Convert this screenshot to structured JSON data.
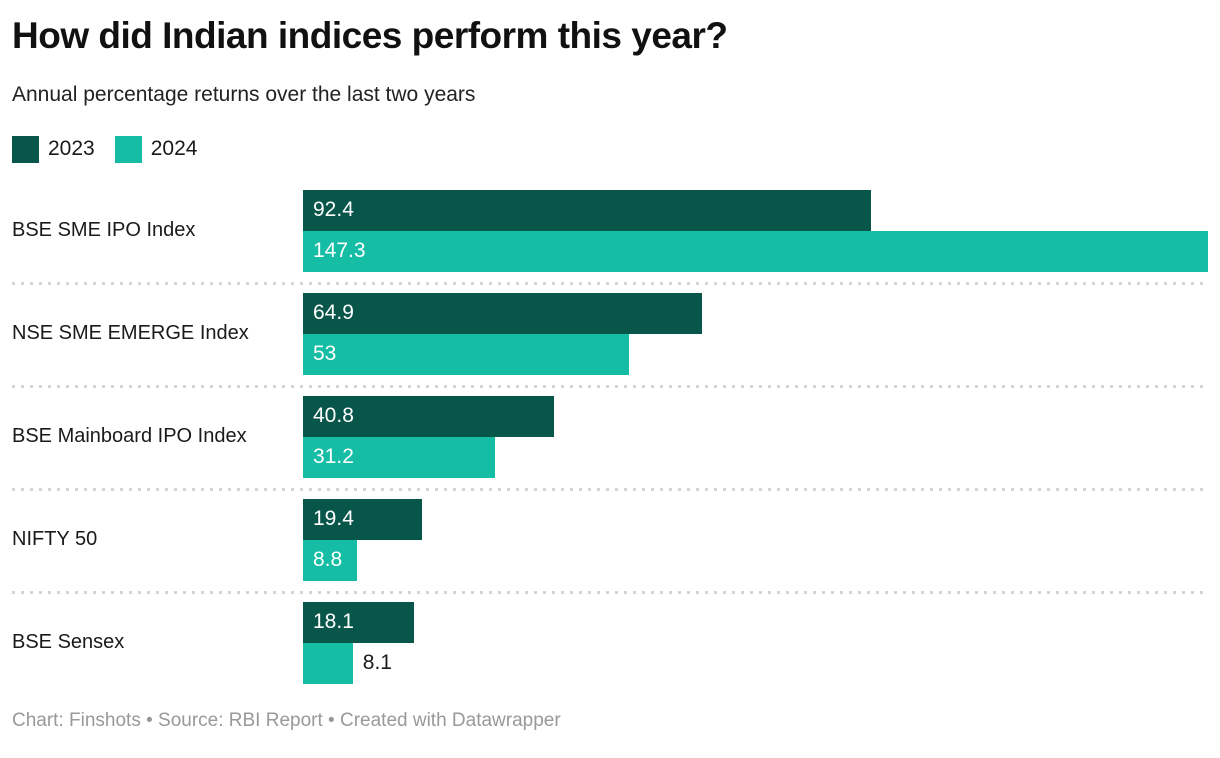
{
  "header": {
    "title": "How did Indian indices perform this year?",
    "subtitle": "Annual percentage returns over the last two years"
  },
  "legend": {
    "items": [
      {
        "label": "2023",
        "color": "#075649"
      },
      {
        "label": "2024",
        "color": "#14bda4"
      }
    ]
  },
  "chart_data": {
    "type": "bar",
    "orientation": "horizontal",
    "title": "How did Indian indices perform this year?",
    "subtitle": "Annual percentage returns over the last two years",
    "categories": [
      "BSE SME IPO Index",
      "NSE SME EMERGE Index",
      "BSE Mainboard IPO Index",
      "NIFTY 50",
      "BSE Sensex"
    ],
    "series": [
      {
        "name": "2023",
        "color": "#075649",
        "values": [
          92.4,
          64.9,
          40.8,
          19.4,
          18.1
        ],
        "labels": [
          "92.4",
          "64.9",
          "40.8",
          "19.4",
          "18.1"
        ]
      },
      {
        "name": "2024",
        "color": "#14bda4",
        "values": [
          147.3,
          53,
          31.2,
          8.8,
          8.1
        ],
        "labels": [
          "147.3",
          "53",
          "31.2",
          "8.8",
          "8.1"
        ]
      }
    ],
    "xlim": [
      0,
      147.3
    ],
    "grid": false,
    "legend_position": "top-left",
    "value_label_color_inside": "#ffffff",
    "value_label_color_outside": "#1a1a1a",
    "separator_color": "#d4d4d4"
  },
  "footer": {
    "text": "Chart: Finshots • Source: RBI Report • Created with Datawrapper"
  }
}
